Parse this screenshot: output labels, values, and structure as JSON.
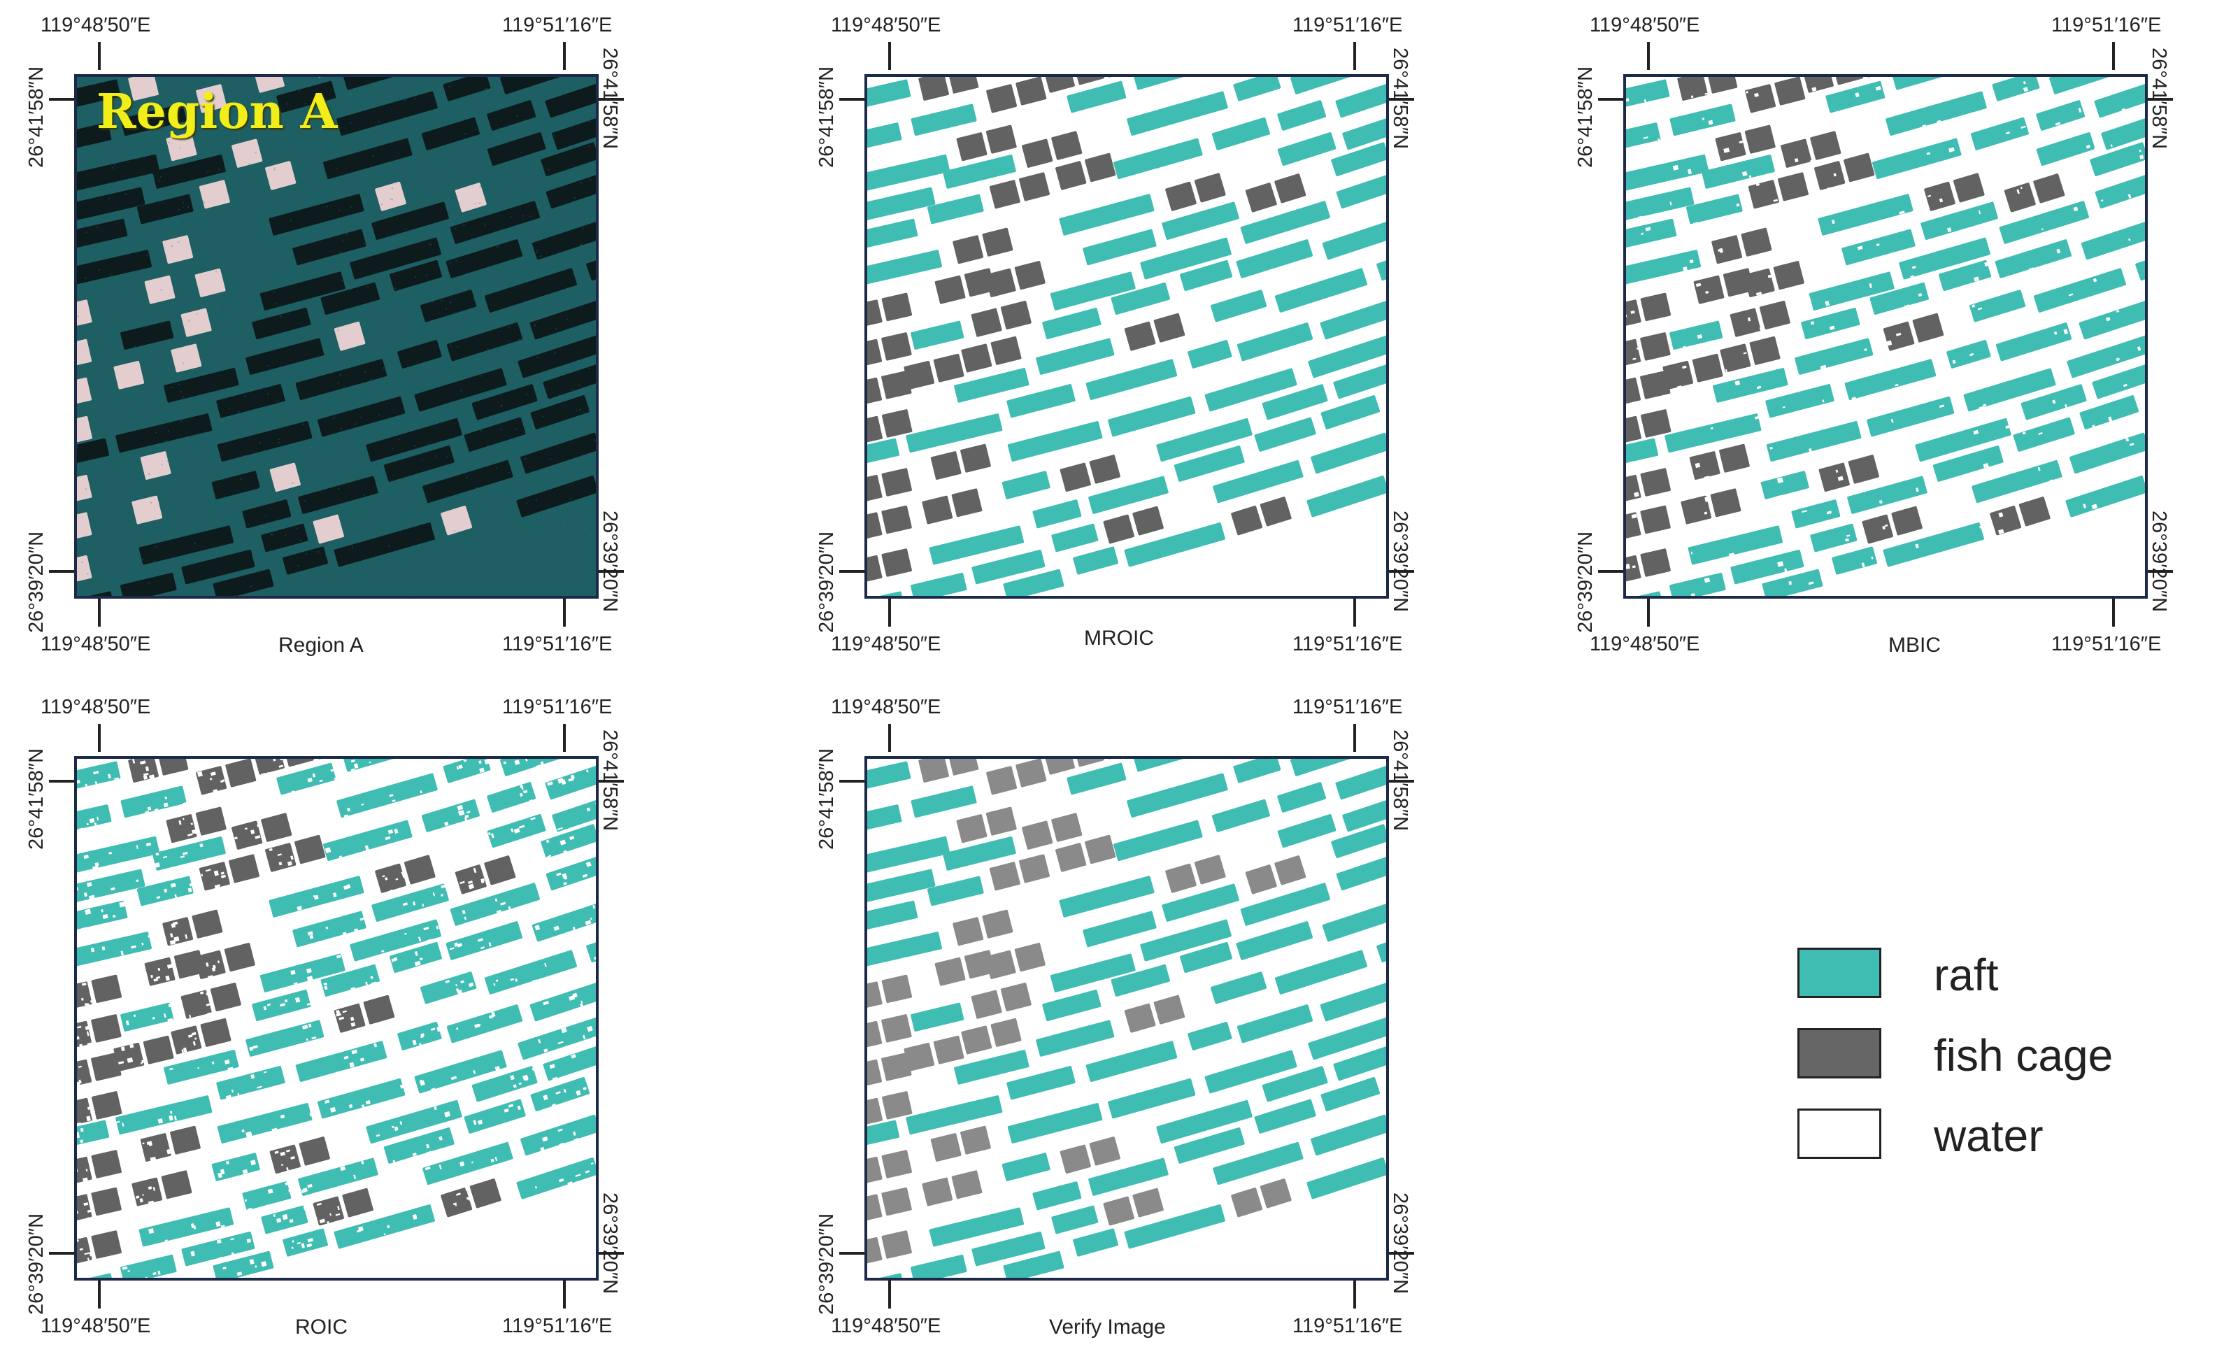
{
  "coords": {
    "lon_left": "119°48′50″E",
    "lon_right": "119°51′16″E",
    "lat_top": "26°41′58″N",
    "lat_bottom": "26°39′20″N"
  },
  "panels": [
    {
      "key": "region_a",
      "caption": "Region A",
      "overlay_label": "Region A",
      "kind": "satellite"
    },
    {
      "key": "mroic",
      "caption": "MROIC",
      "kind": "classified",
      "noise": 0.01
    },
    {
      "key": "mbic",
      "caption": "MBIC",
      "kind": "classified",
      "noise": 0.06
    },
    {
      "key": "roic",
      "caption": "ROIC",
      "kind": "classified",
      "noise": 0.16
    },
    {
      "key": "verify",
      "caption": "Verify Image",
      "kind": "verify",
      "noise": 0.0
    }
  ],
  "colors": {
    "raft": "#3fbdb2",
    "fish_cage": "#626262",
    "fish_cage_verify": "#8a8a8a",
    "water": "#ffffff",
    "sat_water": "#1d5f63",
    "sat_raft": "#0d1b1d",
    "sat_cage": "#e4cdcf",
    "frame": "#1c2a4a"
  },
  "legend": {
    "items": [
      {
        "label": "raft",
        "color": "#3fbdb2"
      },
      {
        "label": "fish cage",
        "color": "#666666"
      },
      {
        "label": "water",
        "color": "#ffffff"
      }
    ]
  }
}
